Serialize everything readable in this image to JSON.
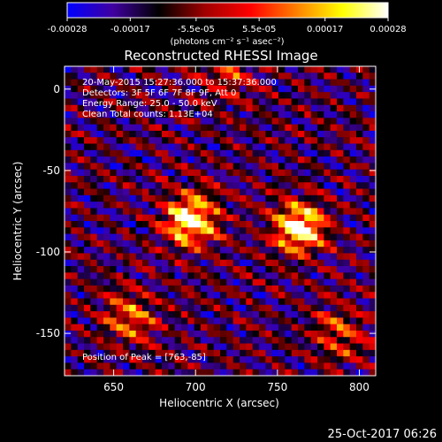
{
  "colorbar": {
    "tick_labels": [
      "-0.00028",
      "-0.00017",
      "-5.5e-05",
      "5.5e-05",
      "0.00017",
      "0.00028"
    ],
    "tick_values": [
      -0.00028,
      -0.00017,
      -5.5e-05,
      5.5e-05,
      0.00017,
      0.00028
    ],
    "range": [
      -0.00028,
      0.00028
    ],
    "unit_label": "(photons cm⁻² s⁻¹ asec⁻²)",
    "colors": [
      "#0000ff",
      "#4000a0",
      "#000000",
      "#a00000",
      "#ff0000",
      "#ff8000",
      "#ffff00",
      "#ffffff"
    ]
  },
  "chart_data": {
    "type": "heatmap",
    "title": "Reconstructed RHESSI Image",
    "xlabel": "Heliocentric X (arcsec)",
    "ylabel": "Heliocentric Y (arcsec)",
    "xlim": [
      620,
      810
    ],
    "ylim": [
      -176,
      14
    ],
    "xticks": [
      650,
      700,
      750,
      800
    ],
    "yticks": [
      0,
      -50,
      -100,
      -150
    ],
    "xtick_labels": [
      "650",
      "700",
      "750",
      "800"
    ],
    "ytick_labels": [
      "0",
      "-50",
      "-100",
      "-150"
    ],
    "peak": [
      763,
      -85
    ],
    "sources": [
      {
        "x": 697,
        "y": -80,
        "strength": 1.0
      },
      {
        "x": 763,
        "y": -85,
        "strength": 1.0
      },
      {
        "x": 660,
        "y": -140,
        "strength": 0.55
      },
      {
        "x": 790,
        "y": -150,
        "strength": 0.5
      },
      {
        "x": 720,
        "y": 10,
        "strength": 0.45
      }
    ],
    "annotations": {
      "time_range": "20-May-2015 15:27:36.000 to 15:37:36.000",
      "detectors": "Detectors: 3F 5F 6F 7F 8F 9F, Att 0",
      "energy_range": "Energy Range: 25.0 - 50.0 keV",
      "clean_counts": "Clean    Total counts: 1.13E+04",
      "peak_position": "Position of Peak = [763,-85]"
    }
  },
  "footer": {
    "timestamp": "25-Oct-2017 06:26"
  }
}
